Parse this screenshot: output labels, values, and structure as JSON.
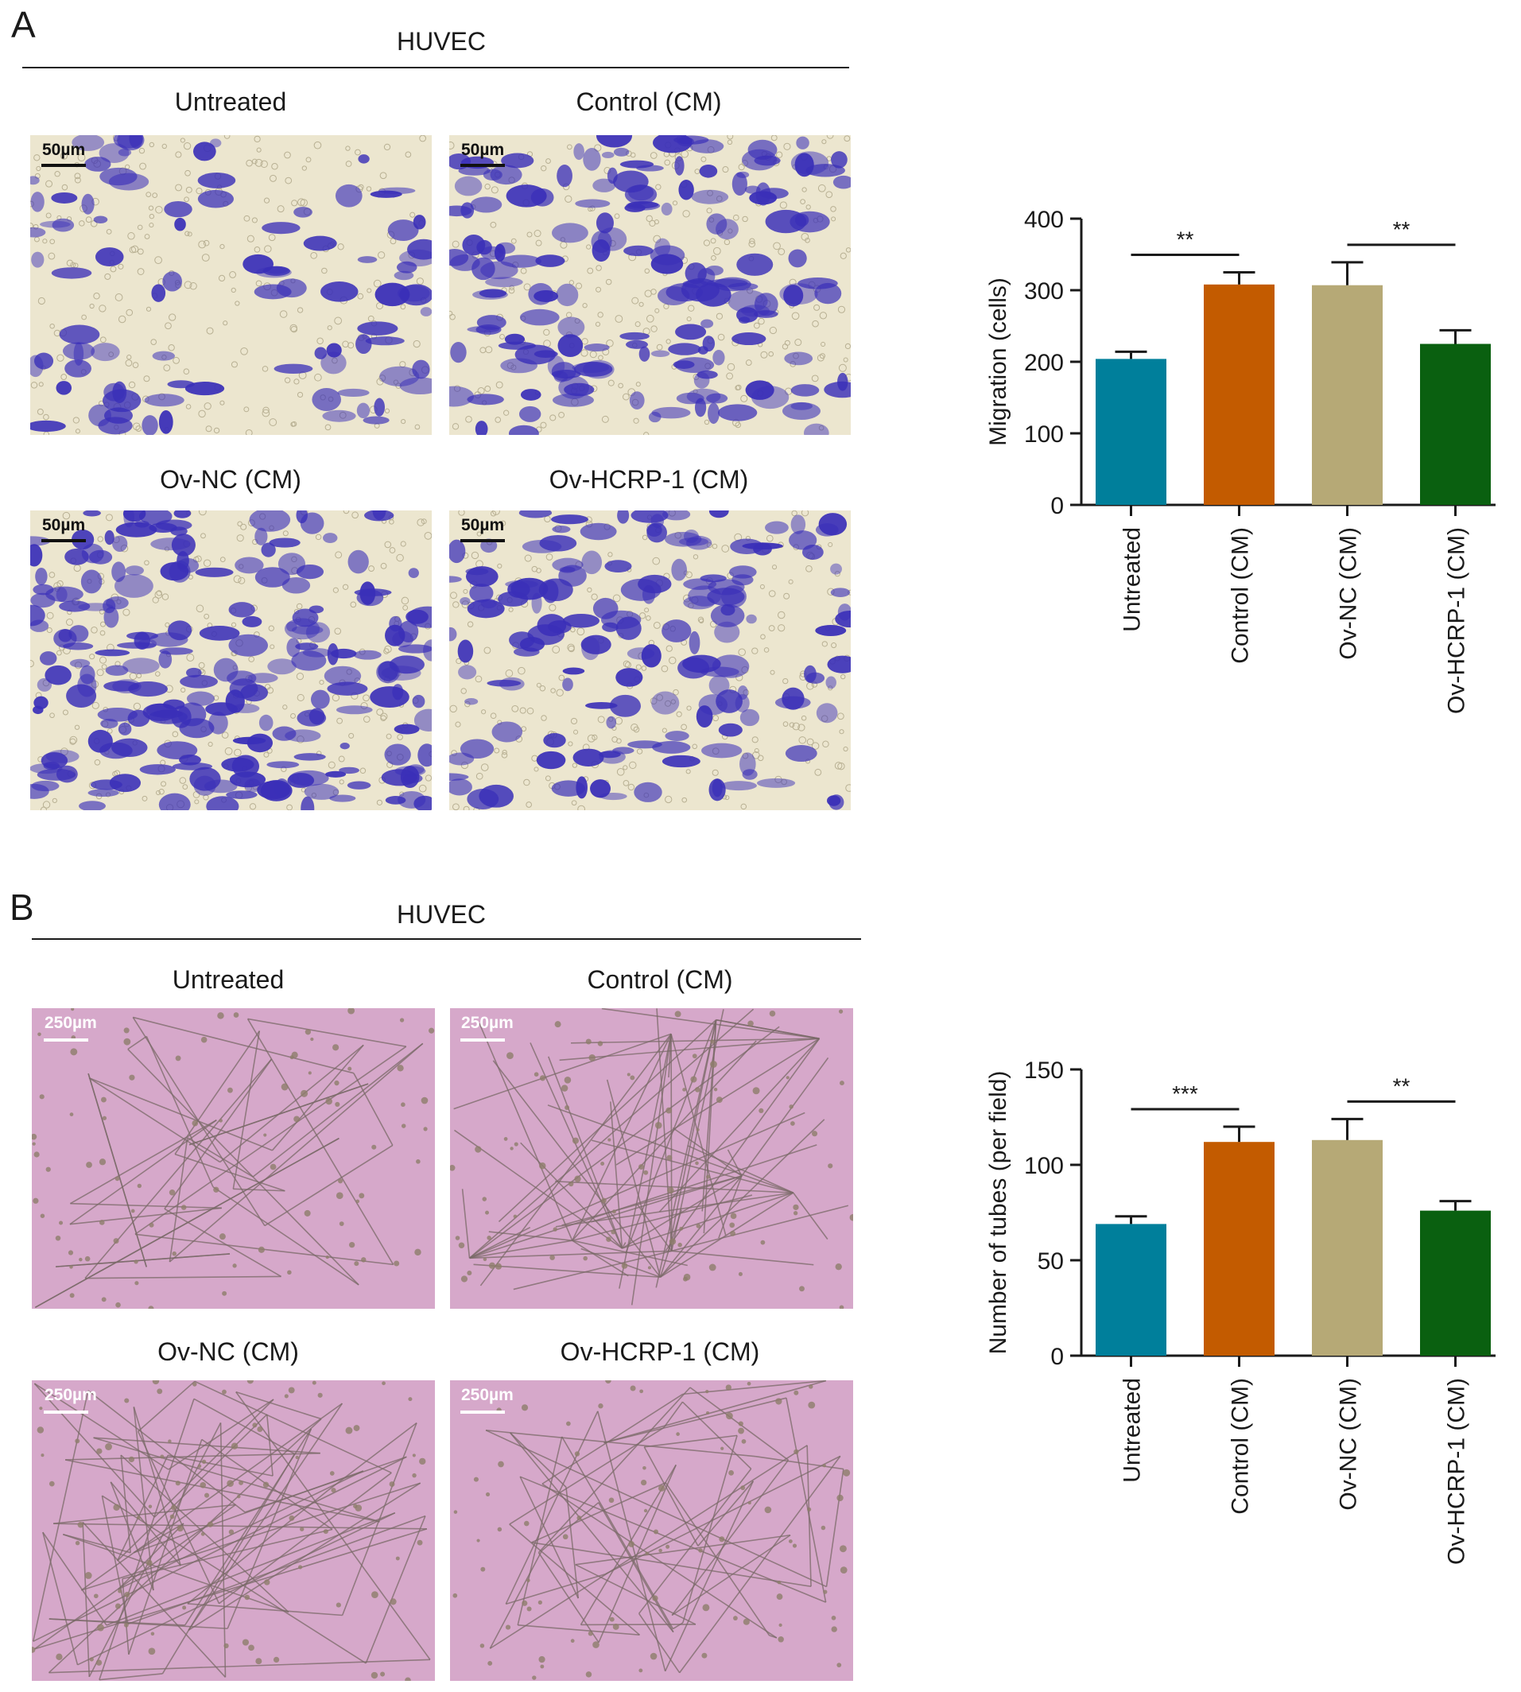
{
  "panel_a": {
    "letter": "A",
    "cell_line": "HUVEC",
    "images": [
      {
        "title": "Untreated",
        "scale_label": "50µm"
      },
      {
        "title": "Control (CM)",
        "scale_label": "50µm"
      },
      {
        "title": "Ov-NC (CM)",
        "scale_label": "50µm"
      },
      {
        "title": "Ov-HCRP-1 (CM)",
        "scale_label": "50µm"
      }
    ]
  },
  "panel_b": {
    "letter": "B",
    "cell_line": "HUVEC",
    "images": [
      {
        "title": "Untreated",
        "scale_label": "250µm"
      },
      {
        "title": "Control (CM)",
        "scale_label": "250µm"
      },
      {
        "title": "Ov-NC (CM)",
        "scale_label": "250µm"
      },
      {
        "title": "Ov-HCRP-1 (CM)",
        "scale_label": "250µm"
      }
    ]
  },
  "colors": {
    "crystal_violet": "#3a2fb8",
    "matrigel": "#d6a8ca",
    "untreated": "#007f9b",
    "control": "#c35b00",
    "ov_nc": "#b6a976",
    "ov_hcrp1": "#0a6010"
  },
  "chart_data": [
    {
      "type": "bar",
      "title": "",
      "xlabel": "",
      "ylabel": "Migration (cells)",
      "categories": [
        "Untreated",
        "Control (CM)",
        "Ov-NC (CM)",
        "Ov-HCRP-1 (CM)"
      ],
      "values": [
        204,
        308,
        307,
        225
      ],
      "errors": [
        10,
        17,
        32,
        19
      ],
      "ylim": [
        0,
        400
      ],
      "yticks": [
        0,
        100,
        200,
        300,
        400
      ],
      "colors": [
        "#007f9b",
        "#c35b00",
        "#b6a976",
        "#0a6010"
      ],
      "significance": [
        {
          "from": 0,
          "to": 1,
          "label": "**"
        },
        {
          "from": 2,
          "to": 3,
          "label": "**"
        }
      ],
      "grid": false,
      "legend": "none"
    },
    {
      "type": "bar",
      "title": "",
      "xlabel": "",
      "ylabel": "Number of tubes (per field)",
      "categories": [
        "Untreated",
        "Control (CM)",
        "Ov-NC (CM)",
        "Ov-HCRP-1 (CM)"
      ],
      "values": [
        69,
        112,
        113,
        76
      ],
      "errors": [
        4,
        8,
        11,
        5
      ],
      "ylim": [
        0,
        150
      ],
      "yticks": [
        0,
        50,
        100,
        150
      ],
      "colors": [
        "#007f9b",
        "#c35b00",
        "#b6a976",
        "#0a6010"
      ],
      "significance": [
        {
          "from": 0,
          "to": 1,
          "label": "***"
        },
        {
          "from": 2,
          "to": 3,
          "label": "**"
        }
      ],
      "grid": false,
      "legend": "none"
    }
  ]
}
